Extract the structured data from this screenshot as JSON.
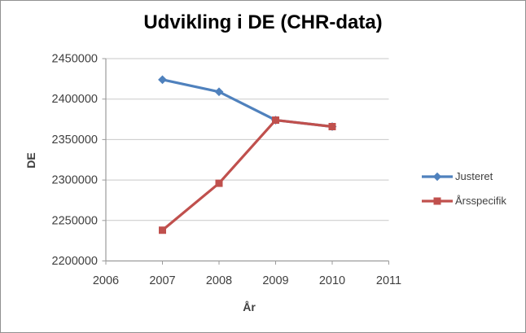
{
  "chart_data": {
    "type": "line",
    "title": "Udvikling i DE (CHR-data)",
    "xlabel": "År",
    "ylabel": "DE",
    "x": [
      2007,
      2008,
      2009,
      2010
    ],
    "x_ticks": [
      "2006",
      "2007",
      "2008",
      "2009",
      "2010",
      "2011"
    ],
    "xlim": [
      2006,
      2011
    ],
    "y_ticks": [
      "2200000",
      "2250000",
      "2300000",
      "2350000",
      "2400000",
      "2450000"
    ],
    "ylim": [
      2200000,
      2450000
    ],
    "ytick_step": 50000,
    "grid": true,
    "legend_position": "right",
    "series": [
      {
        "name": "Justeret",
        "color": "#4F81BD",
        "marker": "diamond",
        "values": [
          2424000,
          2409000,
          2374000,
          2366000
        ]
      },
      {
        "name": "Årsspecifik",
        "color": "#C0504D",
        "marker": "square",
        "values": [
          2238000,
          2296000,
          2374000,
          2366000
        ]
      }
    ]
  },
  "colors": {
    "background": "#ffffff",
    "frame_border": "#919191",
    "gridline": "#c9c9c9",
    "axis_line": "#9b9b9b",
    "tick_text": "#3f3f3f",
    "title_text": "#000000"
  }
}
